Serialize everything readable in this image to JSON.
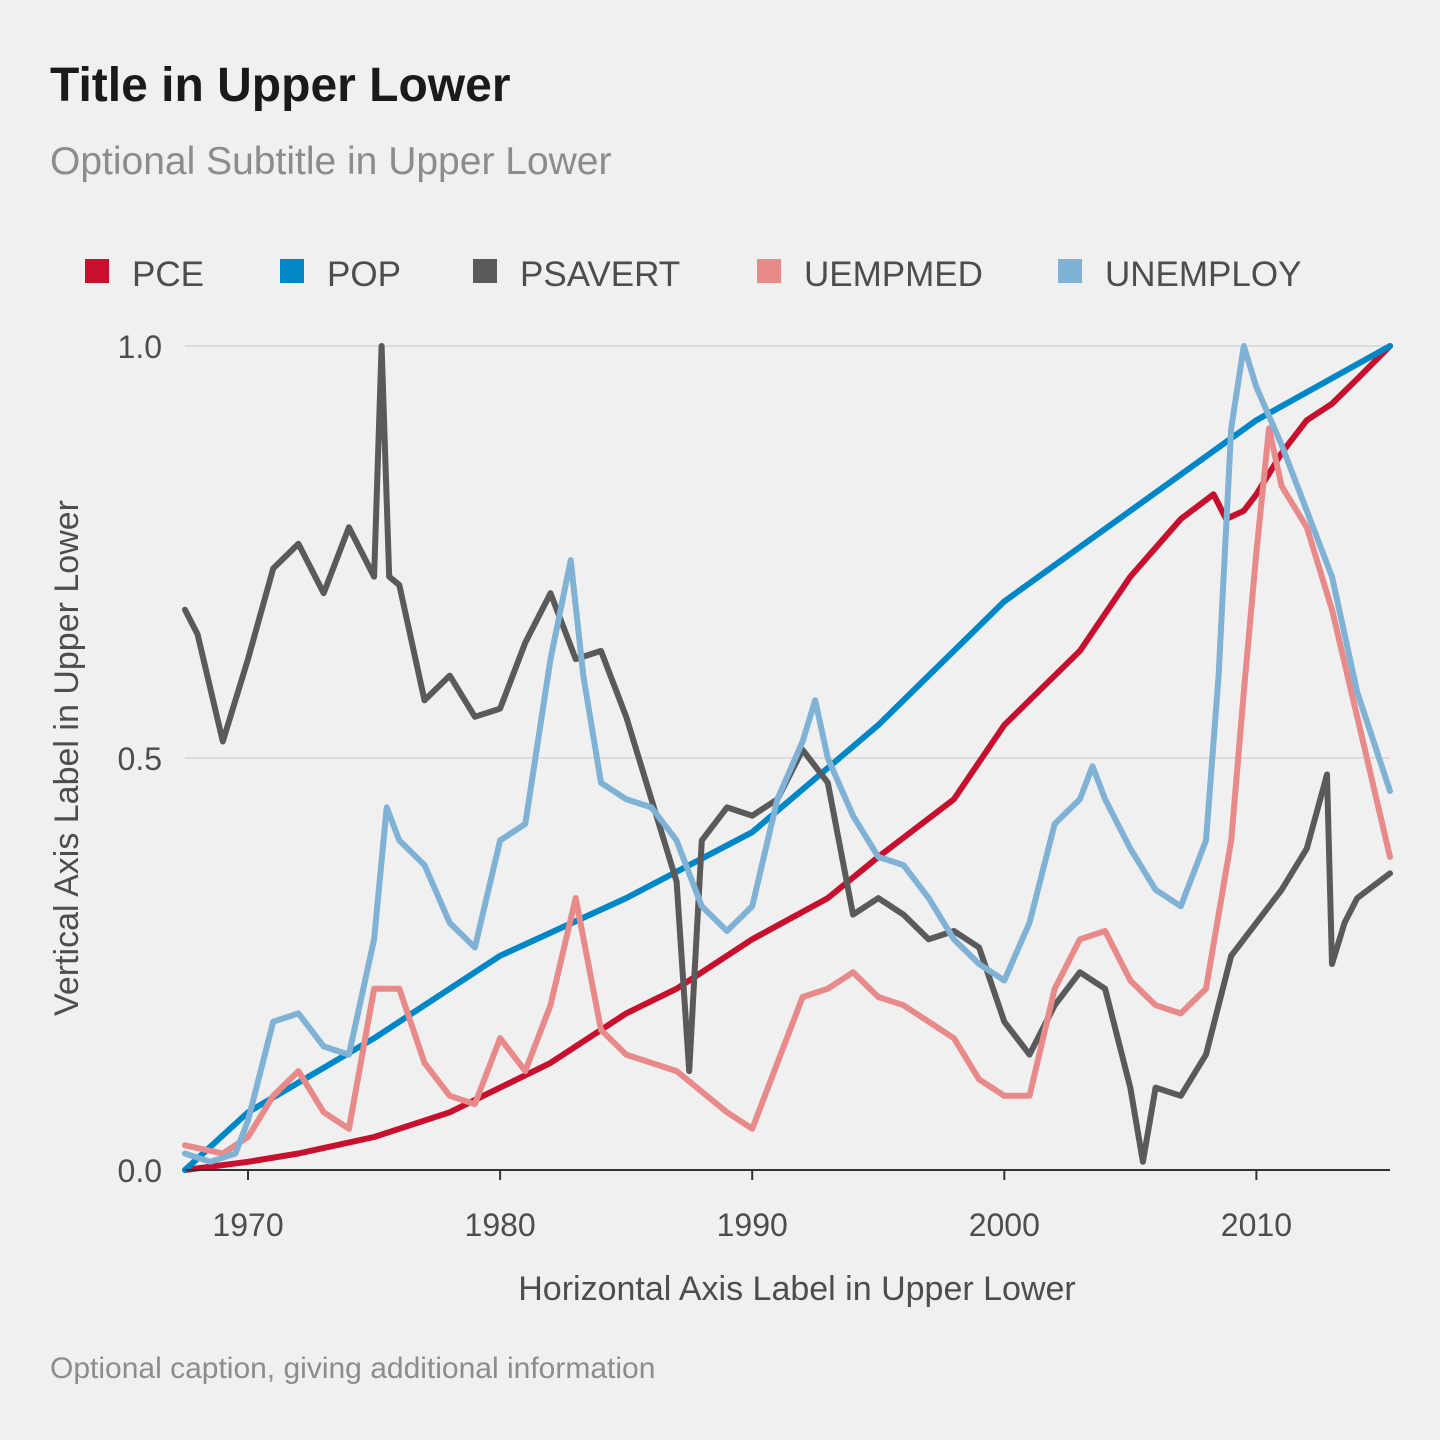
{
  "title": "Title in Upper Lower",
  "subtitle": "Optional Subtitle in Upper Lower",
  "caption": "Optional caption, giving additional information",
  "chart_data": {
    "type": "line",
    "title": "Title in Upper Lower",
    "subtitle": "Optional Subtitle in Upper Lower",
    "xlabel": "Horizontal Axis Label in Upper Lower",
    "ylabel": "Vertical Axis Label in Upper Lower",
    "xlim": [
      1967.5,
      2015.3
    ],
    "ylim": [
      0,
      1
    ],
    "xticks": [
      "1970",
      "1980",
      "1990",
      "2000",
      "2010"
    ],
    "yticks": [
      "0.0",
      "0.5",
      "1.0"
    ],
    "grid": "horizontal major",
    "legend_position": "top",
    "series": [
      {
        "name": "PCE",
        "color": "#c8102e",
        "x": [
          1967.5,
          1970,
          1972,
          1975,
          1978,
          1980,
          1982,
          1985,
          1987,
          1990,
          1993,
          1995,
          1998,
          2000,
          2003,
          2005,
          2007,
          2008.3,
          2008.8,
          2009.5,
          2010,
          2011,
          2012,
          2013,
          2014,
          2015.3
        ],
        "y": [
          0.0,
          0.01,
          0.02,
          0.04,
          0.07,
          0.1,
          0.13,
          0.19,
          0.22,
          0.28,
          0.33,
          0.38,
          0.45,
          0.54,
          0.63,
          0.72,
          0.79,
          0.82,
          0.79,
          0.8,
          0.82,
          0.87,
          0.91,
          0.93,
          0.96,
          1.0
        ]
      },
      {
        "name": "POP",
        "color": "#0087c7",
        "x": [
          1967.5,
          1970,
          1975,
          1980,
          1985,
          1990,
          1995,
          2000,
          2005,
          2010,
          2015.3
        ],
        "y": [
          0.0,
          0.07,
          0.16,
          0.26,
          0.33,
          0.41,
          0.54,
          0.69,
          0.8,
          0.91,
          1.0
        ]
      },
      {
        "name": "PSAVERT",
        "color": "#5a5a5a",
        "x": [
          1967.5,
          1968,
          1969,
          1970,
          1971,
          1972,
          1973,
          1974,
          1975,
          1975.3,
          1975.6,
          1976,
          1977,
          1978,
          1979,
          1980,
          1981,
          1982,
          1983,
          1984,
          1985,
          1986,
          1987,
          1987.5,
          1988,
          1989,
          1990,
          1991,
          1992,
          1993,
          1994,
          1995,
          1996,
          1997,
          1998,
          1999,
          2000,
          2001,
          2002,
          2003,
          2004,
          2005,
          2005.5,
          2006,
          2007,
          2008,
          2009,
          2010,
          2011,
          2012,
          2012.8,
          2013,
          2013.5,
          2014,
          2015.3
        ],
        "y": [
          0.68,
          0.65,
          0.52,
          0.62,
          0.73,
          0.76,
          0.7,
          0.78,
          0.72,
          1.0,
          0.72,
          0.71,
          0.57,
          0.6,
          0.55,
          0.56,
          0.64,
          0.7,
          0.62,
          0.63,
          0.55,
          0.45,
          0.35,
          0.12,
          0.4,
          0.44,
          0.43,
          0.45,
          0.51,
          0.47,
          0.31,
          0.33,
          0.31,
          0.28,
          0.29,
          0.27,
          0.18,
          0.14,
          0.2,
          0.24,
          0.22,
          0.1,
          0.01,
          0.1,
          0.09,
          0.14,
          0.26,
          0.3,
          0.34,
          0.39,
          0.48,
          0.25,
          0.3,
          0.33,
          0.36
        ]
      },
      {
        "name": "UEMPMED",
        "color": "#e88a8a",
        "x": [
          1967.5,
          1969,
          1970,
          1971,
          1972,
          1973,
          1974,
          1975,
          1976,
          1977,
          1978,
          1979,
          1980,
          1981,
          1982,
          1983,
          1984,
          1985,
          1987,
          1989,
          1990,
          1991,
          1992,
          1993,
          1994,
          1995,
          1996,
          1998,
          1999,
          2000,
          2001,
          2002,
          2003,
          2004,
          2005,
          2006,
          2007,
          2008,
          2009,
          2009.5,
          2010,
          2010.5,
          2011,
          2012,
          2013,
          2014,
          2015.3
        ],
        "y": [
          0.03,
          0.02,
          0.04,
          0.09,
          0.12,
          0.07,
          0.05,
          0.22,
          0.22,
          0.13,
          0.09,
          0.08,
          0.16,
          0.12,
          0.2,
          0.33,
          0.17,
          0.14,
          0.12,
          0.07,
          0.05,
          0.13,
          0.21,
          0.22,
          0.24,
          0.21,
          0.2,
          0.16,
          0.11,
          0.09,
          0.09,
          0.22,
          0.28,
          0.29,
          0.23,
          0.2,
          0.19,
          0.22,
          0.4,
          0.58,
          0.75,
          0.9,
          0.83,
          0.78,
          0.68,
          0.55,
          0.38
        ]
      },
      {
        "name": "UNEMPLOY",
        "color": "#7fb2d5",
        "x": [
          1967.5,
          1968.5,
          1969.5,
          1970,
          1971,
          1972,
          1973,
          1974,
          1975,
          1975.5,
          1976,
          1977,
          1978,
          1979,
          1980,
          1981,
          1982,
          1982.8,
          1983.3,
          1984,
          1985,
          1986,
          1987,
          1988,
          1989,
          1990,
          1991,
          1992,
          1992.5,
          1993,
          1994,
          1995,
          1996,
          1997,
          1998,
          1999,
          2000,
          2001,
          2002,
          2003,
          2003.5,
          2004,
          2005,
          2006,
          2007,
          2008,
          2008.5,
          2009,
          2009.5,
          2010,
          2011,
          2012,
          2013,
          2014,
          2015.3
        ],
        "y": [
          0.02,
          0.01,
          0.02,
          0.06,
          0.18,
          0.19,
          0.15,
          0.14,
          0.28,
          0.44,
          0.4,
          0.37,
          0.3,
          0.27,
          0.4,
          0.42,
          0.62,
          0.74,
          0.6,
          0.47,
          0.45,
          0.44,
          0.4,
          0.32,
          0.29,
          0.32,
          0.45,
          0.52,
          0.57,
          0.5,
          0.43,
          0.38,
          0.37,
          0.33,
          0.28,
          0.25,
          0.23,
          0.3,
          0.42,
          0.45,
          0.49,
          0.45,
          0.39,
          0.34,
          0.32,
          0.4,
          0.6,
          0.9,
          1.0,
          0.95,
          0.88,
          0.8,
          0.72,
          0.58,
          0.46
        ]
      }
    ]
  }
}
